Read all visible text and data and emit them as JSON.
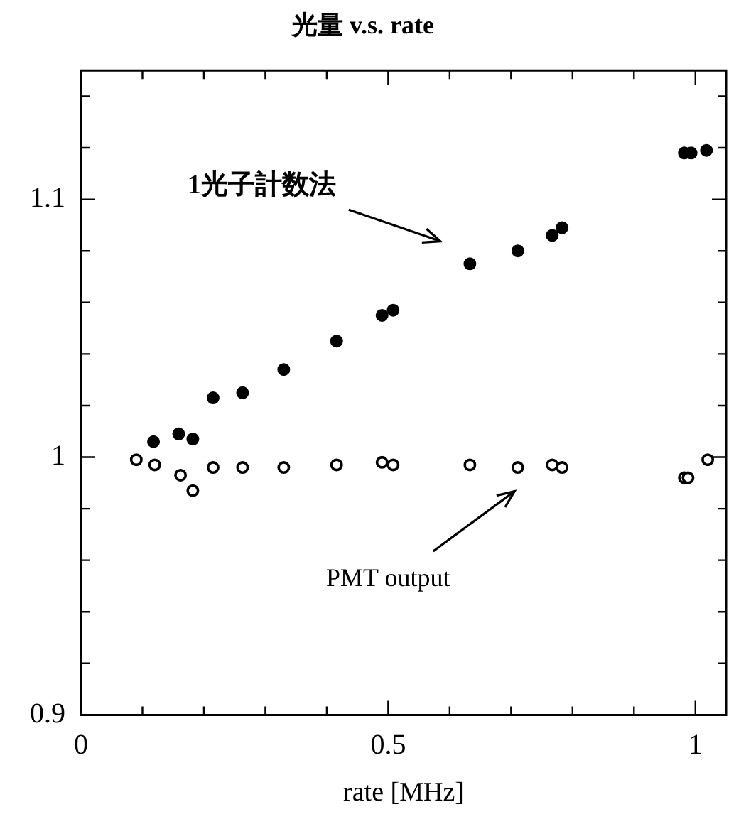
{
  "chart_data": {
    "type": "scatter",
    "title": "光量 v.s. rate",
    "xlabel": "rate [MHz]",
    "marker": "circle",
    "grid": false,
    "legend": false,
    "xlim": [
      0,
      1.05
    ],
    "ylim": [
      0.9,
      1.15
    ],
    "xticks": [
      0,
      {
        "value": 0.1,
        "label": null
      },
      {
        "value": 0.2,
        "label": null
      },
      {
        "value": 0.3,
        "label": null
      },
      {
        "value": 0.4,
        "label": null
      },
      0.5,
      {
        "value": 0.6,
        "label": null
      },
      {
        "value": 0.7,
        "label": null
      },
      {
        "value": 0.8,
        "label": null
      },
      {
        "value": 0.9,
        "label": null
      },
      1
    ],
    "yticks": [
      0.9,
      {
        "value": 0.92,
        "label": null
      },
      {
        "value": 0.94,
        "label": null
      },
      {
        "value": 0.96,
        "label": null
      },
      {
        "value": 0.98,
        "label": null
      },
      1,
      {
        "value": 1.02,
        "label": null
      },
      {
        "value": 1.04,
        "label": null
      },
      {
        "value": 1.06,
        "label": null
      },
      {
        "value": 1.08,
        "label": null
      },
      1.1,
      {
        "value": 1.12,
        "label": null
      },
      {
        "value": 1.14,
        "label": null
      }
    ],
    "series": [
      {
        "color": "#000000",
        "x": [
          0.118,
          0.159,
          0.182,
          0.215,
          0.263,
          0.33,
          0.416,
          0.49,
          0.508,
          0.633,
          0.711,
          0.767,
          0.783,
          0.982,
          0.993,
          1.018
        ],
        "values": [
          1.006,
          1.009,
          1.007,
          1.023,
          1.025,
          1.034,
          1.045,
          1.055,
          1.057,
          1.075,
          1.08,
          1.086,
          1.089,
          1.118,
          1.118,
          1.119
        ]
      },
      {
        "color": "#000000",
        "x": [
          0.09,
          0.12,
          0.162,
          0.182,
          0.215,
          0.263,
          0.33,
          0.416,
          0.49,
          0.508,
          0.633,
          0.711,
          0.767,
          0.783,
          0.982,
          0.988,
          1.02
        ],
        "values": [
          0.999,
          0.997,
          0.993,
          0.987,
          0.996,
          0.996,
          0.996,
          0.997,
          0.998,
          0.997,
          0.997,
          0.996,
          0.997,
          0.996,
          0.992,
          0.992,
          0.999
        ]
      }
    ],
    "annotations": [
      "1光子計数法",
      "PMT output"
    ]
  }
}
